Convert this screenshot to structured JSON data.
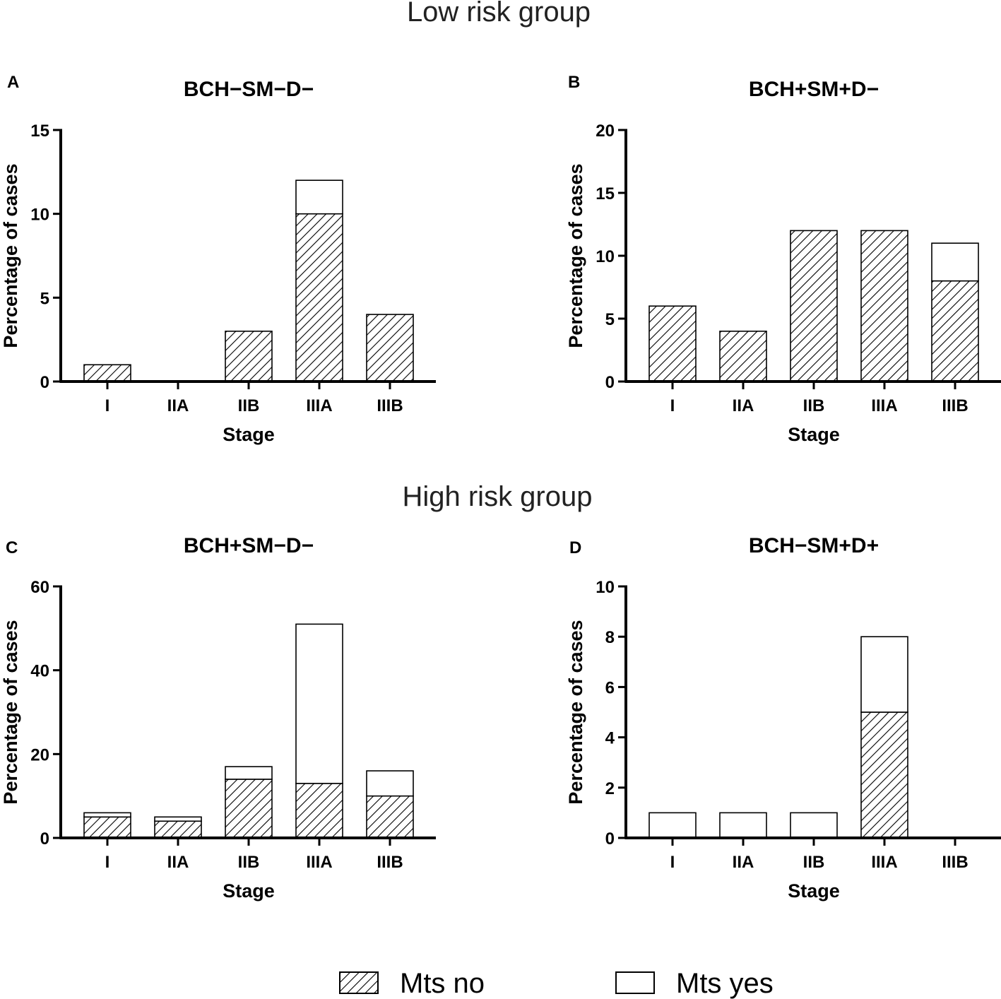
{
  "figure": {
    "group_titles": [
      "Low risk group",
      "High risk group"
    ],
    "legend": [
      {
        "label": "Mts no",
        "pattern": "hatched"
      },
      {
        "label": "Mts yes",
        "pattern": "open"
      }
    ],
    "colors": {
      "bar_outline": "#000000",
      "hatch": "#000000",
      "open_fill": "#ffffff"
    }
  },
  "chart_data": [
    {
      "panel": "A",
      "group": "Low risk group",
      "type": "bar",
      "stacked": true,
      "title": "BCH−SM−D−",
      "xlabel": "Stage",
      "ylabel": "Percentage of cases",
      "categories": [
        "I",
        "IIA",
        "IIB",
        "IIIA",
        "IIIB"
      ],
      "series": [
        {
          "name": "Mts no",
          "values": [
            1,
            0,
            3,
            10,
            4
          ]
        },
        {
          "name": "Mts yes",
          "values": [
            0,
            0,
            0,
            2,
            0
          ]
        }
      ],
      "ylim": [
        0,
        15
      ],
      "yticks": [
        0,
        5,
        10,
        15
      ]
    },
    {
      "panel": "B",
      "group": "Low risk group",
      "type": "bar",
      "stacked": true,
      "title": "BCH+SM+D−",
      "xlabel": "Stage",
      "ylabel": "Percentage of cases",
      "categories": [
        "I",
        "IIA",
        "IIB",
        "IIIA",
        "IIIB"
      ],
      "series": [
        {
          "name": "Mts no",
          "values": [
            6,
            4,
            12,
            12,
            8
          ]
        },
        {
          "name": "Mts yes",
          "values": [
            0,
            0,
            0,
            0,
            3
          ]
        }
      ],
      "ylim": [
        0,
        20
      ],
      "yticks": [
        0,
        5,
        10,
        15,
        20
      ]
    },
    {
      "panel": "C",
      "group": "High risk group",
      "type": "bar",
      "stacked": true,
      "title": "BCH+SM−D−",
      "xlabel": "Stage",
      "ylabel": "Percentage of cases",
      "categories": [
        "I",
        "IIA",
        "IIB",
        "IIIA",
        "IIIB"
      ],
      "series": [
        {
          "name": "Mts no",
          "values": [
            5,
            4,
            14,
            13,
            10
          ]
        },
        {
          "name": "Mts yes",
          "values": [
            1,
            1,
            3,
            38,
            6
          ]
        }
      ],
      "ylim": [
        0,
        60
      ],
      "yticks": [
        0,
        20,
        40,
        60
      ]
    },
    {
      "panel": "D",
      "group": "High risk group",
      "type": "bar",
      "stacked": true,
      "title": "BCH−SM+D+",
      "xlabel": "Stage",
      "ylabel": "Percentage of cases",
      "categories": [
        "I",
        "IIA",
        "IIB",
        "IIIA",
        "IIIB"
      ],
      "series": [
        {
          "name": "Mts no",
          "values": [
            0,
            0,
            0,
            5,
            0
          ]
        },
        {
          "name": "Mts yes",
          "values": [
            1,
            1,
            1,
            3,
            0
          ]
        }
      ],
      "ylim": [
        0,
        10
      ],
      "yticks": [
        0,
        2,
        4,
        6,
        8,
        10
      ]
    }
  ]
}
